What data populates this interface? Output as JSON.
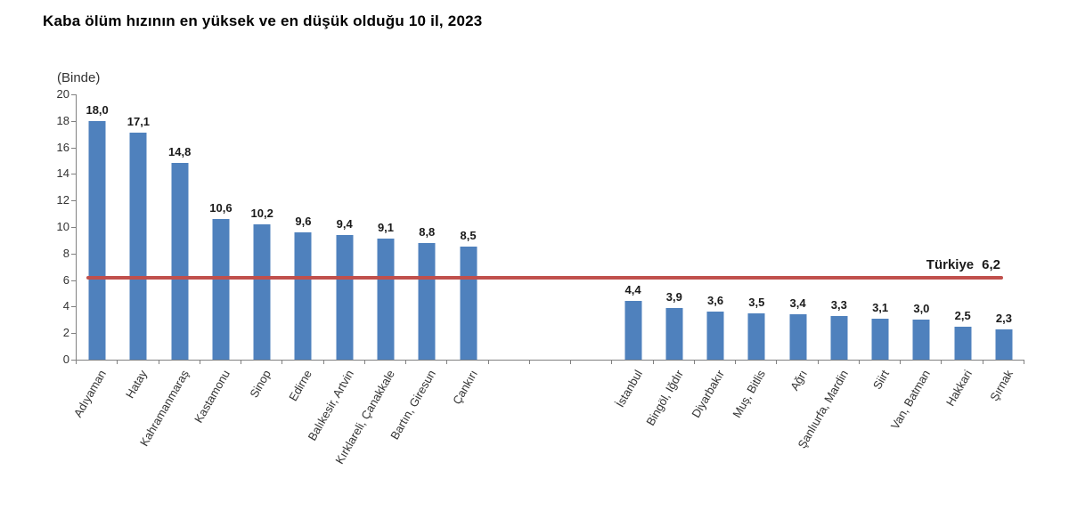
{
  "title": "Kaba ölüm hızının en yüksek ve en düşük olduğu 10 il, 2023",
  "chart_data": {
    "type": "bar",
    "title": "Kaba ölüm hızının en yüksek ve en düşük olduğu 10 il, 2023",
    "unit_label": "(Binde)",
    "xlabel": "",
    "ylabel": "(Binde)",
    "ylim": [
      0,
      20
    ],
    "ytick_step": 2,
    "grid": false,
    "legend": "none",
    "bar_color": "#4f81bd",
    "axis_color": "#808080",
    "gap_slots": 3,
    "reference_line": {
      "label": "Türkiye",
      "value": 6.2,
      "display": "6,2",
      "color": "#c0504d"
    },
    "groups": [
      {
        "name": "highest",
        "items": [
          {
            "label": "Adıyaman",
            "value": 18.0,
            "display": "18,0"
          },
          {
            "label": "Hatay",
            "value": 17.1,
            "display": "17,1"
          },
          {
            "label": "Kahramanmaraş",
            "value": 14.8,
            "display": "14,8"
          },
          {
            "label": "Kastamonu",
            "value": 10.6,
            "display": "10,6"
          },
          {
            "label": "Sinop",
            "value": 10.2,
            "display": "10,2"
          },
          {
            "label": "Edirne",
            "value": 9.6,
            "display": "9,6"
          },
          {
            "label": "Balıkesir, Artvin",
            "value": 9.4,
            "display": "9,4"
          },
          {
            "label": "Kırklareli, Çanakkale",
            "value": 9.1,
            "display": "9,1"
          },
          {
            "label": "Bartın, Giresun",
            "value": 8.8,
            "display": "8,8"
          },
          {
            "label": "Çankırı",
            "value": 8.5,
            "display": "8,5"
          }
        ]
      },
      {
        "name": "lowest",
        "items": [
          {
            "label": "İstanbul",
            "value": 4.4,
            "display": "4,4"
          },
          {
            "label": "Bingöl, Iğdır",
            "value": 3.9,
            "display": "3,9"
          },
          {
            "label": "Diyarbakır",
            "value": 3.6,
            "display": "3,6"
          },
          {
            "label": "Muş, Bitlis",
            "value": 3.5,
            "display": "3,5"
          },
          {
            "label": "Ağrı",
            "value": 3.4,
            "display": "3,4"
          },
          {
            "label": "Şanlıurfa, Mardin",
            "value": 3.3,
            "display": "3,3"
          },
          {
            "label": "Siirt",
            "value": 3.1,
            "display": "3,1"
          },
          {
            "label": "Van, Batman",
            "value": 3.0,
            "display": "3,0"
          },
          {
            "label": "Hakkari",
            "value": 2.5,
            "display": "2,5"
          },
          {
            "label": "Şırnak",
            "value": 2.3,
            "display": "2,3"
          }
        ]
      }
    ]
  }
}
